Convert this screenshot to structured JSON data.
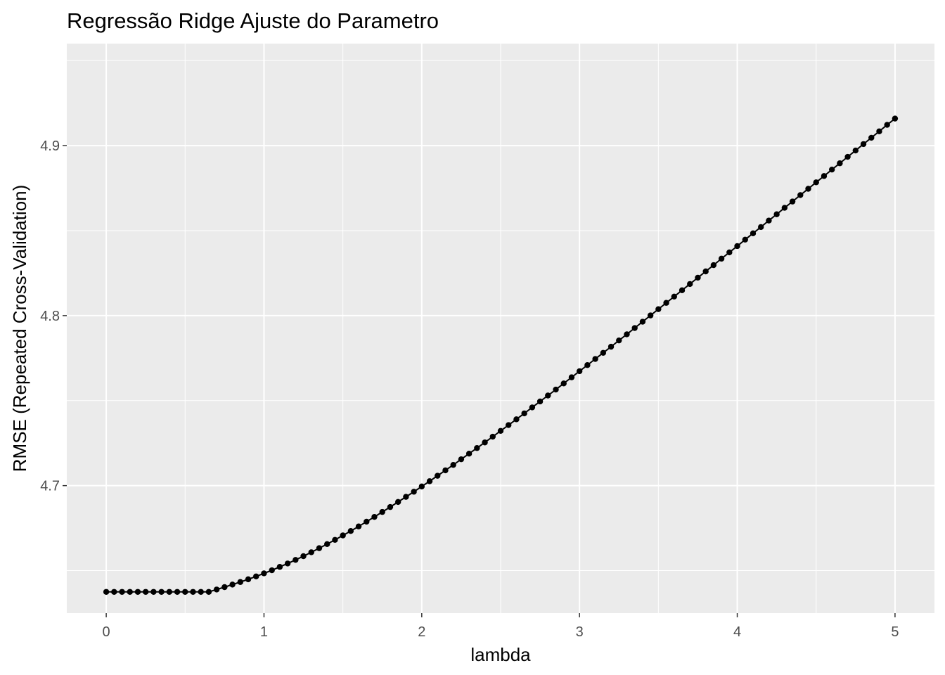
{
  "chart_data": {
    "type": "line",
    "title": "Regressão Ridge Ajuste do Parametro",
    "xlabel": "lambda",
    "ylabel": "RMSE (Repeated Cross-Validation)",
    "xlim": [
      -0.25,
      5.25
    ],
    "ylim": [
      4.625,
      4.96
    ],
    "x_ticks": [
      0,
      1,
      2,
      3,
      4,
      5
    ],
    "x_tick_labels": [
      "0",
      "1",
      "2",
      "3",
      "4",
      "5"
    ],
    "y_ticks": [
      4.7,
      4.8,
      4.9
    ],
    "y_tick_labels": [
      "4.7",
      "4.8",
      "4.9"
    ],
    "grid": true,
    "legend": "none",
    "colors": {
      "panel": "#ebebeb",
      "grid": "#ffffff",
      "series": "#000000"
    },
    "series": [
      {
        "x": [
          0.0,
          0.05,
          0.1,
          0.15,
          0.2,
          0.25,
          0.3,
          0.35,
          0.4,
          0.45,
          0.5,
          0.55,
          0.6,
          0.65,
          0.7,
          0.75,
          0.8,
          0.85,
          0.9,
          0.95,
          1.0,
          1.05,
          1.1,
          1.15,
          1.2,
          1.25,
          1.3,
          1.35,
          1.4,
          1.45,
          1.5,
          1.55,
          1.6,
          1.65,
          1.7,
          1.75,
          1.8,
          1.85,
          1.9,
          1.95,
          2.0,
          2.05,
          2.1,
          2.15,
          2.2,
          2.25,
          2.3,
          2.35,
          2.4,
          2.45,
          2.5,
          2.55,
          2.6,
          2.65,
          2.7,
          2.75,
          2.8,
          2.85,
          2.9,
          2.95,
          3.0,
          3.05,
          3.1,
          3.15,
          3.2,
          3.25,
          3.3,
          3.35,
          3.4,
          3.45,
          3.5,
          3.55,
          3.6,
          3.65,
          3.7,
          3.75,
          3.8,
          3.85,
          3.9,
          3.95,
          4.0,
          4.05,
          4.1,
          4.15,
          4.2,
          4.25,
          4.3,
          4.35,
          4.4,
          4.45,
          4.5,
          4.55,
          4.6,
          4.65,
          4.7,
          4.75,
          4.8,
          4.85,
          4.9,
          4.95,
          5.0
        ],
        "values": [
          4.6375,
          4.6375,
          4.6375,
          4.6375,
          4.6375,
          4.6375,
          4.6375,
          4.6375,
          4.6375,
          4.6375,
          4.6375,
          4.6375,
          4.6375,
          4.6375,
          4.6389,
          4.6403,
          4.6418,
          4.6433,
          4.6449,
          4.6466,
          4.6484,
          4.6502,
          4.6522,
          4.6542,
          4.6563,
          4.6585,
          4.6608,
          4.6632,
          4.6656,
          4.6681,
          4.6707,
          4.6733,
          4.676,
          4.6788,
          4.6816,
          4.6845,
          4.6874,
          4.6904,
          4.6934,
          4.6964,
          4.6995,
          4.7026,
          4.7058,
          4.709,
          4.7122,
          4.7155,
          4.7188,
          4.7221,
          4.7254,
          4.7288,
          4.7322,
          4.7356,
          4.739,
          4.7425,
          4.746,
          4.7495,
          4.753,
          4.7565,
          4.7601,
          4.7637,
          4.7673,
          4.7709,
          4.7745,
          4.7781,
          4.7817,
          4.7854,
          4.789,
          4.7927,
          4.7964,
          4.8001,
          4.8038,
          4.8075,
          4.8112,
          4.8149,
          4.8186,
          4.8223,
          4.826,
          4.8297,
          4.8335,
          4.8372,
          4.8409,
          4.8447,
          4.8484,
          4.8521,
          4.8559,
          4.8596,
          4.8634,
          4.8671,
          4.8709,
          4.8746,
          4.8784,
          4.8821,
          4.8859,
          4.8896,
          4.8934,
          4.8971,
          4.9009,
          4.9046,
          4.9084,
          4.9122,
          4.9159
        ]
      }
    ]
  }
}
